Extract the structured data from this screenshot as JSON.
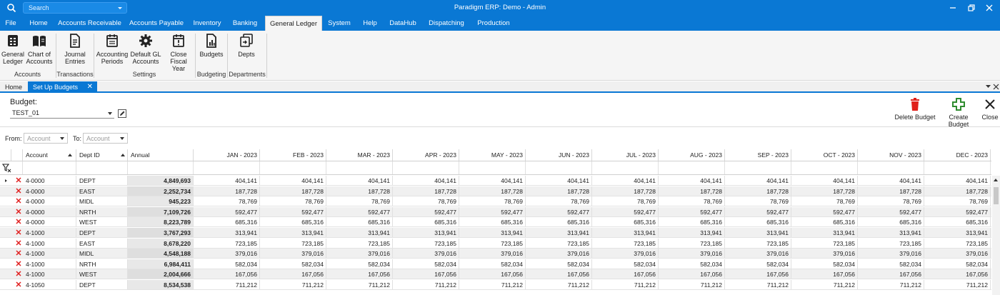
{
  "titlebar": {
    "search_placeholder": "Search",
    "title": "Paradigm ERP: Demo - Admin"
  },
  "menu": [
    "File",
    "Home",
    "Accounts Receivable",
    "Accounts Payable",
    "Inventory",
    "Banking",
    "General Ledger",
    "System",
    "Help",
    "DataHub",
    "Dispatching",
    "Production"
  ],
  "menu_active": "General Ledger",
  "ribbon": {
    "general_ledger": [
      "General",
      "Ledger"
    ],
    "chart_of_accounts": [
      "Chart of",
      "Accounts"
    ],
    "journal_entries": [
      "Journal",
      "Entries"
    ],
    "accounting_periods": [
      "Accounting",
      "Periods"
    ],
    "default_gl_accounts": [
      "Default GL",
      "Accounts"
    ],
    "close_fiscal_year": [
      "Close",
      "Fiscal Year"
    ],
    "budgets": "Budgets",
    "depts": "Depts",
    "groups": {
      "accounts": "Accounts",
      "transactions": "Transactions",
      "settings": "Settings",
      "budgeting": "Budgeting",
      "departments": "Departments"
    }
  },
  "tabs": {
    "home": "Home",
    "active": "Set Up Budgets",
    "close_glyph": "✕"
  },
  "form": {
    "budget_label": "Budget:",
    "budget_value": "TEST_01",
    "from_label": "From:",
    "to_label": "To:",
    "account_placeholder": "Account"
  },
  "actions": {
    "delete": "Delete Budget",
    "create": "Create Budget",
    "close": "Close"
  },
  "grid": {
    "columns": {
      "account": "Account",
      "dept": "Dept ID",
      "annual": "Annual",
      "months": [
        "JAN - 2023",
        "FEB - 2023",
        "MAR - 2023",
        "APR - 2023",
        "MAY - 2023",
        "JUN - 2023",
        "JUL - 2023",
        "AUG - 2023",
        "SEP - 2023",
        "OCT - 2023",
        "NOV - 2023",
        "DEC - 2023"
      ]
    },
    "rows": [
      {
        "account": "4-0000",
        "dept": "DEPT",
        "annual": "4,849,693",
        "month": "404,141"
      },
      {
        "account": "4-0000",
        "dept": "EAST",
        "annual": "2,252,734",
        "month": "187,728"
      },
      {
        "account": "4-0000",
        "dept": "MIDL",
        "annual": "945,223",
        "month": "78,769"
      },
      {
        "account": "4-0000",
        "dept": "NRTH",
        "annual": "7,109,726",
        "month": "592,477"
      },
      {
        "account": "4-0000",
        "dept": "WEST",
        "annual": "8,223,789",
        "month": "685,316"
      },
      {
        "account": "4-1000",
        "dept": "DEPT",
        "annual": "3,767,293",
        "month": "313,941"
      },
      {
        "account": "4-1000",
        "dept": "EAST",
        "annual": "8,678,220",
        "month": "723,185"
      },
      {
        "account": "4-1000",
        "dept": "MIDL",
        "annual": "4,548,188",
        "month": "379,016"
      },
      {
        "account": "4-1000",
        "dept": "NRTH",
        "annual": "6,984,411",
        "month": "582,034"
      },
      {
        "account": "4-1000",
        "dept": "WEST",
        "annual": "2,004,666",
        "month": "167,056"
      },
      {
        "account": "4-1050",
        "dept": "DEPT",
        "annual": "8,534,538",
        "month": "711,212"
      }
    ]
  }
}
